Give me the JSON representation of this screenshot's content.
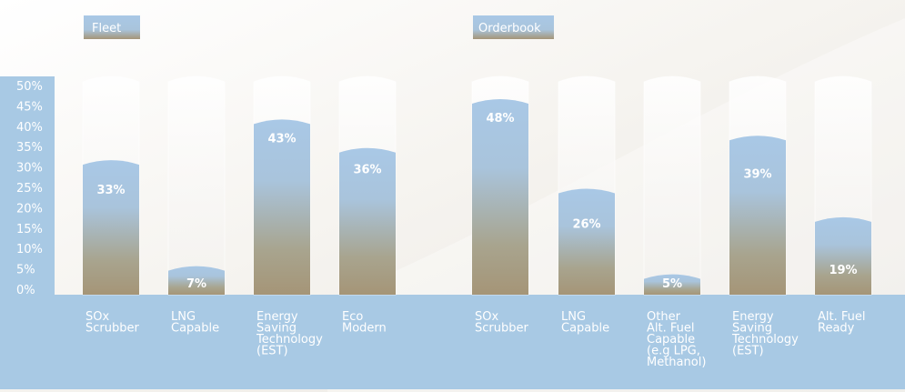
{
  "chart_data": {
    "type": "bar",
    "ylim": [
      0,
      50
    ],
    "ticks": [
      "0%",
      "5%",
      "10%",
      "15%",
      "20%",
      "25%",
      "30%",
      "35%",
      "40%",
      "45%",
      "50%"
    ],
    "groups": [
      {
        "name": "Fleet",
        "categories": [
          [
            "SOx",
            "Scrubber"
          ],
          [
            "LNG",
            "Capable"
          ],
          [
            "Energy",
            "Saving",
            "Technology",
            "(EST)"
          ],
          [
            "Eco",
            "Modern"
          ]
        ],
        "values": [
          33,
          7,
          43,
          36
        ],
        "labels": [
          "33%",
          "7%",
          "43%",
          "36%"
        ]
      },
      {
        "name": "Orderbook",
        "categories": [
          [
            "SOx",
            "Scrubber"
          ],
          [
            "LNG",
            "Capable"
          ],
          [
            "Other",
            "Alt. Fuel",
            "Capable",
            "(e.g LPG,",
            "Methanol)"
          ],
          [
            "Energy",
            "Saving",
            "Technology",
            "(EST)"
          ],
          [
            "Alt. Fuel",
            "Ready"
          ]
        ],
        "values": [
          48,
          26,
          5,
          39,
          19
        ],
        "labels": [
          "48%",
          "26%",
          "5%",
          "39%",
          "19%"
        ]
      }
    ]
  },
  "colors": {
    "accent": "#a8c9e4",
    "bar_top": "#a9c8e6",
    "bar_bottom": "#a59577"
  }
}
